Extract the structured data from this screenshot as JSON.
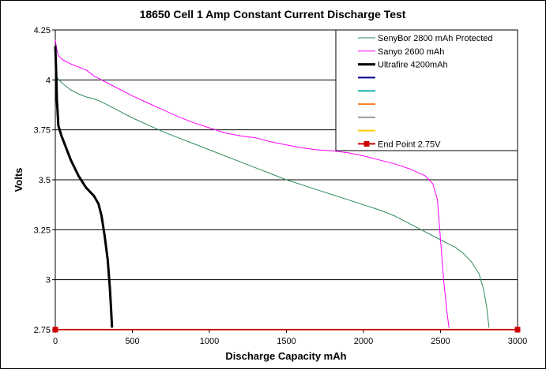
{
  "chart_data": {
    "type": "line",
    "title": "18650 Cell 1 Amp Constant Current Discharge Test",
    "xlabel": "Discharge Capacity mAh",
    "ylabel": "Volts",
    "xlim": [
      0,
      3000
    ],
    "ylim": [
      2.75,
      4.25
    ],
    "x_ticks": [
      0,
      500,
      1000,
      1500,
      2000,
      2500,
      3000
    ],
    "y_ticks": [
      2.75,
      3,
      3.25,
      3.5,
      3.75,
      4,
      4.25
    ],
    "y_tick_labels": [
      "2.75",
      "3",
      "3.25",
      "3.5",
      "3.75",
      "4",
      "4.25"
    ],
    "grid": "horizontal",
    "legend_position": "top-right",
    "series": [
      {
        "name": "SenyBor 2800 mAh Protected",
        "color": "#2e8b57",
        "line_width": 1,
        "marker": "none",
        "points": [
          [
            0,
            4.02
          ],
          [
            50,
            3.98
          ],
          [
            100,
            3.95
          ],
          [
            150,
            3.93
          ],
          [
            200,
            3.915
          ],
          [
            250,
            3.905
          ],
          [
            300,
            3.89
          ],
          [
            400,
            3.85
          ],
          [
            500,
            3.81
          ],
          [
            600,
            3.775
          ],
          [
            700,
            3.74
          ],
          [
            800,
            3.71
          ],
          [
            900,
            3.68
          ],
          [
            1000,
            3.65
          ],
          [
            1100,
            3.62
          ],
          [
            1200,
            3.59
          ],
          [
            1300,
            3.56
          ],
          [
            1400,
            3.53
          ],
          [
            1500,
            3.5
          ],
          [
            1600,
            3.475
          ],
          [
            1700,
            3.45
          ],
          [
            1800,
            3.425
          ],
          [
            1900,
            3.4
          ],
          [
            2000,
            3.375
          ],
          [
            2100,
            3.35
          ],
          [
            2200,
            3.32
          ],
          [
            2300,
            3.28
          ],
          [
            2400,
            3.24
          ],
          [
            2500,
            3.2
          ],
          [
            2600,
            3.16
          ],
          [
            2650,
            3.13
          ],
          [
            2700,
            3.09
          ],
          [
            2750,
            3.03
          ],
          [
            2780,
            2.95
          ],
          [
            2800,
            2.86
          ],
          [
            2815,
            2.76
          ]
        ]
      },
      {
        "name": "Sanyo 2600 mAh",
        "color": "#ff00ff",
        "line_width": 1,
        "marker": "none",
        "points": [
          [
            0,
            4.2
          ],
          [
            10,
            4.15
          ],
          [
            20,
            4.12
          ],
          [
            50,
            4.1
          ],
          [
            100,
            4.08
          ],
          [
            200,
            4.05
          ],
          [
            250,
            4.02
          ],
          [
            300,
            4.0
          ],
          [
            400,
            3.96
          ],
          [
            500,
            3.92
          ],
          [
            600,
            3.885
          ],
          [
            700,
            3.85
          ],
          [
            800,
            3.815
          ],
          [
            900,
            3.785
          ],
          [
            1000,
            3.76
          ],
          [
            1100,
            3.735
          ],
          [
            1200,
            3.72
          ],
          [
            1300,
            3.71
          ],
          [
            1400,
            3.69
          ],
          [
            1500,
            3.675
          ],
          [
            1600,
            3.66
          ],
          [
            1700,
            3.65
          ],
          [
            1800,
            3.645
          ],
          [
            1900,
            3.635
          ],
          [
            2000,
            3.62
          ],
          [
            2100,
            3.6
          ],
          [
            2200,
            3.58
          ],
          [
            2300,
            3.555
          ],
          [
            2400,
            3.52
          ],
          [
            2450,
            3.48
          ],
          [
            2480,
            3.4
          ],
          [
            2500,
            3.2
          ],
          [
            2520,
            3.0
          ],
          [
            2540,
            2.85
          ],
          [
            2555,
            2.76
          ]
        ]
      },
      {
        "name": "Ultrafire 4200mAh",
        "color": "#000000",
        "line_width": 3,
        "marker": "none",
        "points": [
          [
            0,
            4.17
          ],
          [
            5,
            4.05
          ],
          [
            10,
            3.9
          ],
          [
            20,
            3.77
          ],
          [
            40,
            3.72
          ],
          [
            60,
            3.68
          ],
          [
            100,
            3.6
          ],
          [
            150,
            3.52
          ],
          [
            200,
            3.46
          ],
          [
            250,
            3.42
          ],
          [
            280,
            3.38
          ],
          [
            300,
            3.32
          ],
          [
            320,
            3.22
          ],
          [
            340,
            3.1
          ],
          [
            355,
            2.95
          ],
          [
            362,
            2.85
          ],
          [
            368,
            2.76
          ]
        ]
      },
      {
        "name": "",
        "color": "#00008b",
        "line_width": 2,
        "marker": "none",
        "points": []
      },
      {
        "name": "",
        "color": "#20b2aa",
        "line_width": 2,
        "marker": "none",
        "points": []
      },
      {
        "name": "",
        "color": "#ff7f27",
        "line_width": 2,
        "marker": "none",
        "points": []
      },
      {
        "name": "",
        "color": "#999999",
        "line_width": 2,
        "marker": "none",
        "points": []
      },
      {
        "name": "",
        "color": "#ffcc00",
        "line_width": 2,
        "marker": "none",
        "points": []
      },
      {
        "name": "End Point 2.75V",
        "color": "#cc0000",
        "line_width": 2,
        "marker": "square",
        "points": [
          [
            0,
            2.75
          ],
          [
            3000,
            2.75
          ]
        ]
      }
    ]
  }
}
